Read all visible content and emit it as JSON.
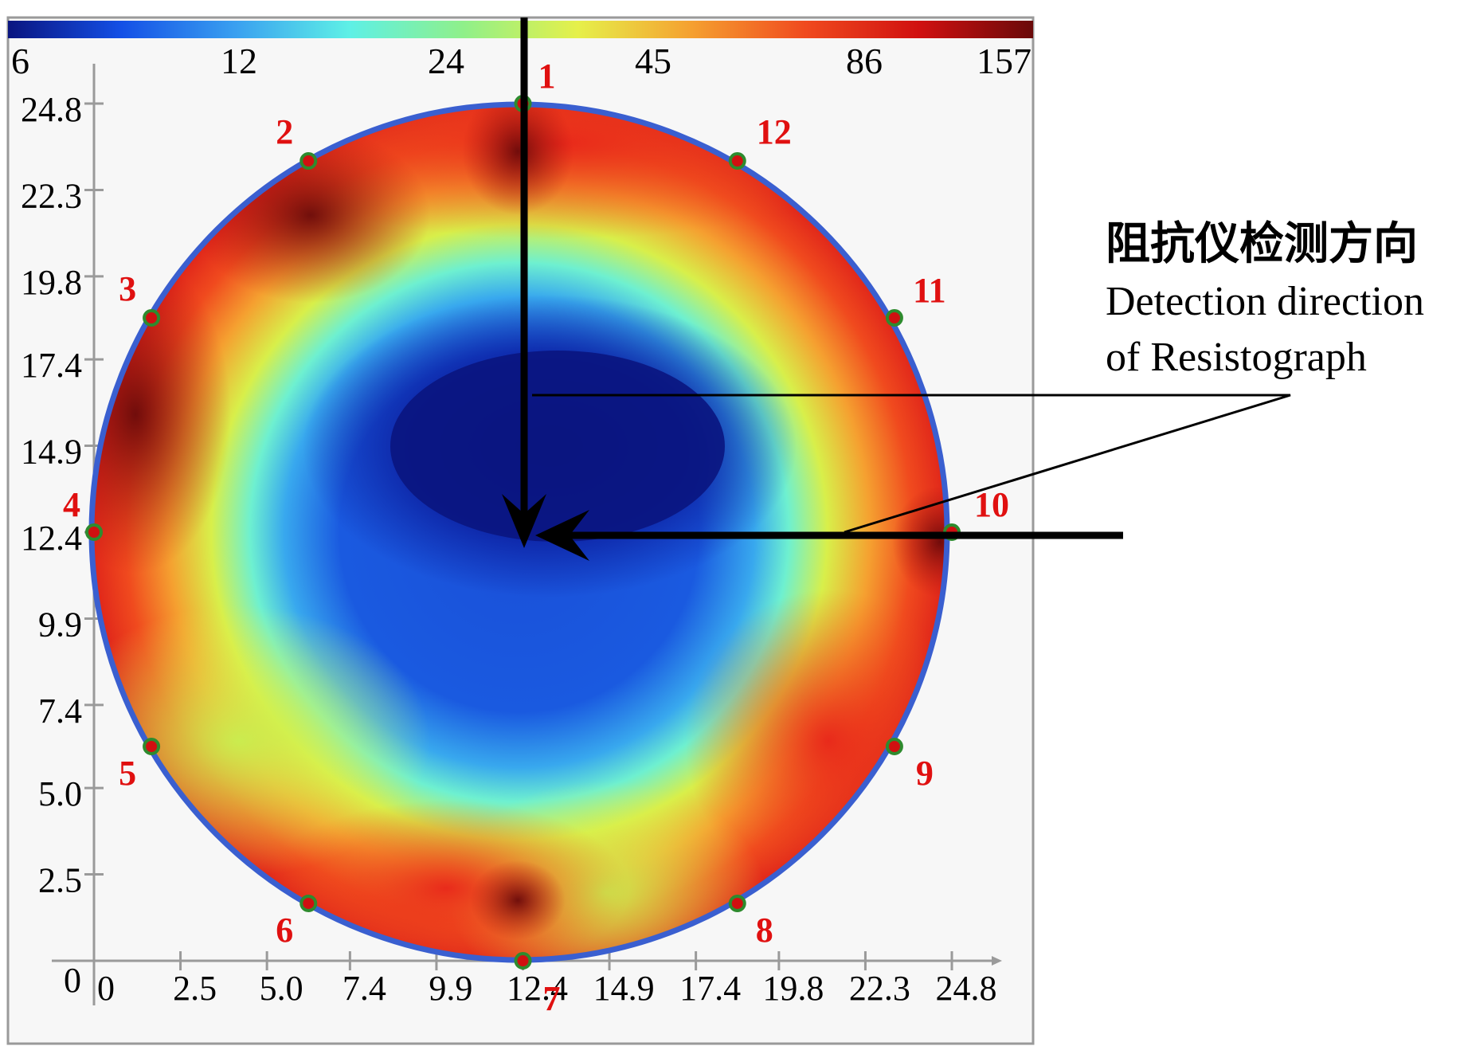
{
  "chart_data": {
    "type": "heatmap",
    "title": "",
    "colorbar": {
      "ticks": [
        "6",
        "12",
        "24",
        "45",
        "86",
        "157"
      ],
      "stops": [
        "#0a1580",
        "#1450e6",
        "#3aa0f0",
        "#5ef0e6",
        "#8ff08a",
        "#e6f04a",
        "#f5a030",
        "#f04a1e",
        "#d01010",
        "#6a0a0a"
      ]
    },
    "x_axis": {
      "zero_label": "0",
      "ticks": [
        "0",
        "2.5",
        "5.0",
        "7.4",
        "9.9",
        "12.4",
        "14.9",
        "17.4",
        "19.8",
        "22.3",
        "24.8"
      ]
    },
    "y_axis": {
      "ticks": [
        "2.5",
        "5.0",
        "7.4",
        "9.9",
        "12.4",
        "14.9",
        "17.4",
        "19.8",
        "22.3",
        "24.8"
      ]
    },
    "domain": {
      "xlim": [
        0,
        24.8
      ],
      "ylim": [
        0,
        24.8
      ]
    },
    "sensors": [
      {
        "label": "1",
        "x": 12.4,
        "y": 24.8
      },
      {
        "label": "2",
        "x": 6.2,
        "y": 23.14
      },
      {
        "label": "3",
        "x": 1.66,
        "y": 18.6
      },
      {
        "label": "4",
        "x": 0.0,
        "y": 12.4
      },
      {
        "label": "5",
        "x": 1.66,
        "y": 6.2
      },
      {
        "label": "6",
        "x": 6.2,
        "y": 1.66
      },
      {
        "label": "7",
        "x": 12.4,
        "y": 0.0
      },
      {
        "label": "8",
        "x": 18.6,
        "y": 1.66
      },
      {
        "label": "9",
        "x": 23.14,
        "y": 6.2
      },
      {
        "label": "10",
        "x": 24.8,
        "y": 12.4
      },
      {
        "label": "11",
        "x": 23.14,
        "y": 18.6
      },
      {
        "label": "12",
        "x": 18.6,
        "y": 23.14
      }
    ],
    "annotation": {
      "chinese": "阻抗仪检测方向",
      "english_line1": "Detection direction",
      "english_line2": "of Resistograph"
    },
    "colors": {
      "circle_border": "#3a5fd0",
      "sensor_marker": "#d01010",
      "sensor_ring": "#2e8b2e",
      "sensor_label": "#e01010",
      "axis": "#9a9a9a"
    }
  }
}
